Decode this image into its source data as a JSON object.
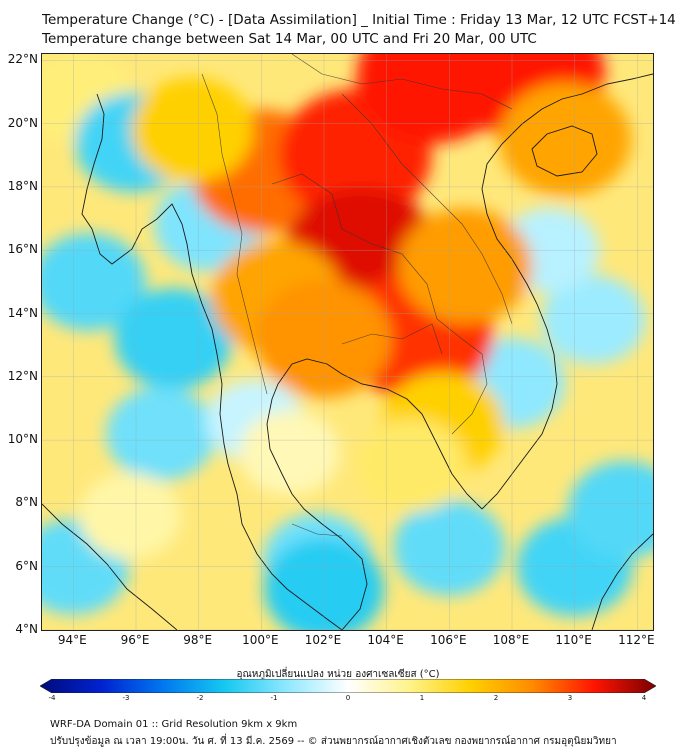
{
  "title": {
    "line1": "Temperature Change (°C) - [Data Assimilation] _ Initial Time : Friday 13 Mar, 12 UTC FCST+144",
    "line2": "Temperature change between Sat 14 Mar, 00 UTC and Fri 20 Mar, 00 UTC"
  },
  "axes": {
    "lat_labels": [
      "22°N",
      "20°N",
      "18°N",
      "16°N",
      "14°N",
      "12°N",
      "10°N",
      "8°N",
      "6°N",
      "4°N"
    ],
    "lon_labels": [
      "94°E",
      "96°E",
      "98°E",
      "100°E",
      "102°E",
      "104°E",
      "106°E",
      "108°E",
      "110°E",
      "112°E"
    ],
    "lat_range": [
      4,
      22.2
    ],
    "lon_range": [
      93,
      112.5
    ],
    "grid": true
  },
  "colorbar": {
    "title": "อุณหภูมิเปลี่ยนแปลง หน่วย องศาเซลเซียส (°C)",
    "ticks": [
      "-4",
      "-3",
      "-2",
      "-1",
      "0",
      "1",
      "2",
      "3",
      "4"
    ],
    "range": [
      -4,
      4
    ],
    "colors": [
      "#000a7a",
      "#0022d0",
      "#0078f0",
      "#16c8f0",
      "#8ee8ff",
      "#ffffff",
      "#fff38a",
      "#ffd000",
      "#ff8a00",
      "#ff1400",
      "#7a0000"
    ]
  },
  "map": {
    "background_color": "#ffe87a",
    "field": [
      {
        "region": "west-sea-north",
        "lon": 94.2,
        "lat": 20.8,
        "value": 0.9
      },
      {
        "region": "west-sea-blue-1",
        "lon": 95.9,
        "lat": 19.4,
        "value": -1.3
      },
      {
        "region": "west-sea-blue-2",
        "lon": 94.5,
        "lat": 15.0,
        "value": -1.2
      },
      {
        "region": "andaman-sea",
        "lon": 97.2,
        "lat": 13.2,
        "value": -1.4
      },
      {
        "region": "andaman-south",
        "lon": 96.8,
        "lat": 10.2,
        "value": -1.0
      },
      {
        "region": "sw-blue",
        "lon": 94.0,
        "lat": 6.0,
        "value": -1.1
      },
      {
        "region": "sw-yellow",
        "lon": 95.8,
        "lat": 7.6,
        "value": 0.6
      },
      {
        "region": "west-coast-blue",
        "lon": 98.3,
        "lat": 16.8,
        "value": -0.9
      },
      {
        "region": "gulf-thailand-west",
        "lon": 99.8,
        "lat": 10.6,
        "value": -0.4
      },
      {
        "region": "gulf-thailand-yellow",
        "lon": 100.9,
        "lat": 9.6,
        "value": 0.5
      },
      {
        "region": "malay-peninsula",
        "lon": 101.8,
        "lat": 6.2,
        "value": -1.0
      },
      {
        "region": "malaysia-center",
        "lon": 102.0,
        "lat": 5.3,
        "value": -1.5
      },
      {
        "region": "south-china-sea-south",
        "lon": 106.0,
        "lat": 6.6,
        "value": -1.1
      },
      {
        "region": "south-east-blue",
        "lon": 110.0,
        "lat": 6.0,
        "value": -1.3
      },
      {
        "region": "south-east-blue-2",
        "lon": 111.6,
        "lat": 7.8,
        "value": -1.2
      },
      {
        "region": "vietnam-coast-blue",
        "lon": 108.0,
        "lat": 11.8,
        "value": -0.8
      },
      {
        "region": "east-sea-blue",
        "lon": 110.6,
        "lat": 13.8,
        "value": -0.7
      },
      {
        "region": "east-sea-blue-2",
        "lon": 109.2,
        "lat": 16.0,
        "value": -0.5
      },
      {
        "region": "myanmar-north",
        "lon": 100.0,
        "lat": 18.5,
        "value": 2.6
      },
      {
        "region": "laos-north",
        "lon": 103.0,
        "lat": 19.0,
        "value": 3.1
      },
      {
        "region": "north-vietnam",
        "lon": 105.5,
        "lat": 21.5,
        "value": 3.2
      },
      {
        "region": "gulf-tonkin",
        "lon": 108.5,
        "lat": 21.6,
        "value": 3.2
      },
      {
        "region": "hainan",
        "lon": 109.7,
        "lat": 19.5,
        "value": 2.1
      },
      {
        "region": "northeast-thailand",
        "lon": 103.2,
        "lat": 15.8,
        "value": 3.4
      },
      {
        "region": "cambodia",
        "lon": 105.0,
        "lat": 13.3,
        "value": 3.0
      },
      {
        "region": "central-thailand",
        "lon": 100.5,
        "lat": 14.5,
        "value": 2.1
      },
      {
        "region": "east-thailand",
        "lon": 102.0,
        "lat": 13.2,
        "value": 2.3
      },
      {
        "region": "central-vietnam",
        "lon": 106.5,
        "lat": 15.5,
        "value": 2.2
      },
      {
        "region": "south-vietnam",
        "lon": 105.8,
        "lat": 10.5,
        "value": 1.6
      },
      {
        "region": "myanmar-central",
        "lon": 97.8,
        "lat": 19.8,
        "value": 1.6
      },
      {
        "region": "mekong-south",
        "lon": 104.8,
        "lat": 9.2,
        "value": 1.0
      }
    ]
  },
  "footer": {
    "line1": "WRF-DA Domain 01 :: Grid Resolution 9km x 9km",
    "line2": "ปรับปรุงข้อมูล ณ เวลา 19:00น. วัน ศ. ที่ 13 มี.ค. 2569 -- © ส่วนพยากรณ์อากาศเชิงตัวเลข กองพยากรณ์อากาศ กรมอุตุนิยมวิทยา"
  }
}
